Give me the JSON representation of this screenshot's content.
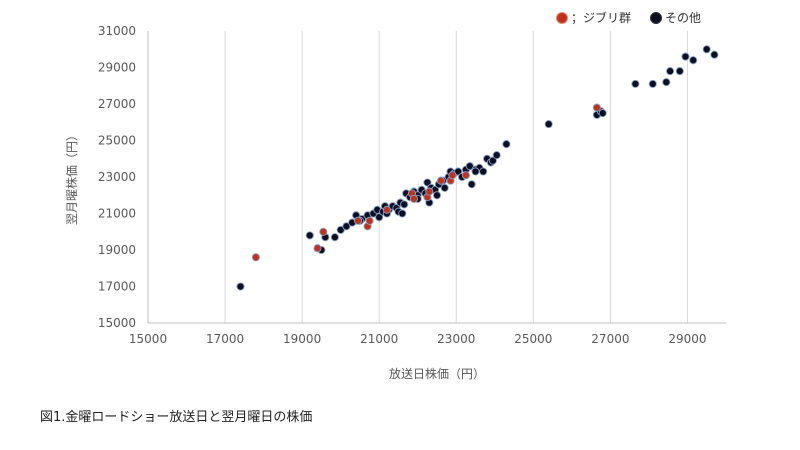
{
  "caption": "図1.金曜ロードショー放送日と翌月曜日の株価",
  "chart_data": {
    "type": "scatter",
    "title": "",
    "xlabel": "放送日株価（円）",
    "ylabel": "翌月曜株価（円）",
    "xlim": [
      15000,
      30000
    ],
    "ylim": [
      15000,
      31000
    ],
    "x_ticks": [
      15000,
      17000,
      19000,
      21000,
      23000,
      25000,
      27000,
      29000
    ],
    "y_ticks": [
      15000,
      17000,
      19000,
      21000,
      23000,
      25000,
      27000,
      29000,
      31000
    ],
    "grid": "vertical",
    "legend_position": "top-right",
    "series": [
      {
        "name": "その他",
        "color": "#0b0f24",
        "points": [
          [
            17400,
            17000
          ],
          [
            19200,
            19800
          ],
          [
            19500,
            19000
          ],
          [
            19600,
            19700
          ],
          [
            19850,
            19700
          ],
          [
            20000,
            20100
          ],
          [
            20150,
            20300
          ],
          [
            20300,
            20500
          ],
          [
            20400,
            20900
          ],
          [
            20550,
            20700
          ],
          [
            20700,
            20900
          ],
          [
            20850,
            21000
          ],
          [
            20950,
            21200
          ],
          [
            21000,
            20800
          ],
          [
            21100,
            21100
          ],
          [
            21150,
            21400
          ],
          [
            21250,
            21200
          ],
          [
            21350,
            21400
          ],
          [
            21450,
            21300
          ],
          [
            21550,
            21600
          ],
          [
            21650,
            21500
          ],
          [
            21700,
            22100
          ],
          [
            21800,
            21900
          ],
          [
            21900,
            22200
          ],
          [
            22000,
            22000
          ],
          [
            22100,
            22300
          ],
          [
            22200,
            22100
          ],
          [
            22250,
            22700
          ],
          [
            22300,
            21600
          ],
          [
            22350,
            22400
          ],
          [
            22450,
            22300
          ],
          [
            22550,
            22600
          ],
          [
            22650,
            22800
          ],
          [
            22700,
            22400
          ],
          [
            22800,
            23000
          ],
          [
            22850,
            23300
          ],
          [
            22950,
            23200
          ],
          [
            23050,
            23300
          ],
          [
            23150,
            23000
          ],
          [
            23250,
            23400
          ],
          [
            23350,
            23600
          ],
          [
            23400,
            22600
          ],
          [
            23500,
            23400
          ],
          [
            23600,
            23500
          ],
          [
            23700,
            23300
          ],
          [
            23800,
            24000
          ],
          [
            23900,
            23800
          ],
          [
            23950,
            23900
          ],
          [
            24050,
            24200
          ],
          [
            24300,
            24800
          ],
          [
            25400,
            25900
          ],
          [
            26650,
            26400
          ],
          [
            26750,
            26600
          ],
          [
            26800,
            26500
          ],
          [
            27650,
            28100
          ],
          [
            28100,
            28100
          ],
          [
            28450,
            28200
          ],
          [
            28550,
            28800
          ],
          [
            28800,
            28800
          ],
          [
            28950,
            29600
          ],
          [
            29150,
            29400
          ],
          [
            29500,
            30000
          ],
          [
            29700,
            29700
          ],
          [
            21500,
            21100
          ],
          [
            21600,
            21000
          ],
          [
            22000,
            21800
          ],
          [
            22500,
            22000
          ],
          [
            21200,
            21000
          ],
          [
            23500,
            23300
          ],
          [
            20500,
            20600
          ]
        ]
      },
      {
        "name": "ジブリ群",
        "color": "#c0321a",
        "points": [
          [
            17800,
            18600
          ],
          [
            19400,
            19100
          ],
          [
            19550,
            20000
          ],
          [
            20450,
            20600
          ],
          [
            20700,
            20300
          ],
          [
            20750,
            20600
          ],
          [
            21200,
            21200
          ],
          [
            21850,
            22100
          ],
          [
            21900,
            21800
          ],
          [
            22250,
            21900
          ],
          [
            22300,
            22200
          ],
          [
            22600,
            22800
          ],
          [
            22850,
            22800
          ],
          [
            22900,
            23100
          ],
          [
            23250,
            23100
          ],
          [
            26650,
            26800
          ]
        ]
      }
    ],
    "legend": [
      {
        "label": "；ジブリ群",
        "series": 1
      },
      {
        "label": "その他",
        "series": 0
      }
    ]
  }
}
